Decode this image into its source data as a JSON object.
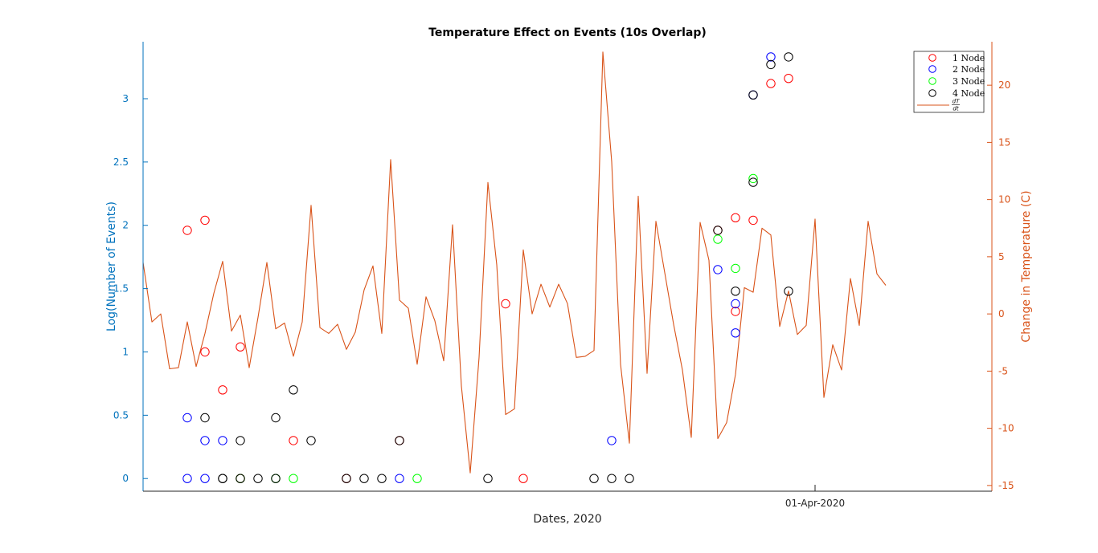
{
  "chart_data": {
    "type": "scatter",
    "title": "Temperature Effect on Events (10s Overlap)",
    "xlabel": "Dates, 2020",
    "ylabel_left": "Log(Number of Events)",
    "ylabel_right": "Change in Temperature (C)",
    "x_tick_labels": [
      "01-Apr-2020"
    ],
    "x_tick_dates": [
      "2020-04-01"
    ],
    "x_range": [
      "2020-02-23",
      "2020-04-11"
    ],
    "left_axis": {
      "ylim": [
        -0.1,
        3.45
      ],
      "ticks": [
        0,
        0.5,
        1,
        1.5,
        2,
        2.5,
        3
      ],
      "tick_labels": [
        "0",
        "0.5",
        "1",
        "1.5",
        "2",
        "2.5",
        "3"
      ],
      "color": "#0072bd"
    },
    "right_axis": {
      "ylim": [
        -15.5,
        23.8
      ],
      "ticks": [
        -15,
        -10,
        -5,
        0,
        5,
        10,
        15,
        20
      ],
      "tick_labels": [
        "-15",
        "-10",
        "-5",
        "0",
        "5",
        "10",
        "15",
        "20"
      ],
      "color": "#d95319"
    },
    "grid": false,
    "legend_position": "top-right",
    "series": [
      {
        "name": "1 Node",
        "color": "#ff0000",
        "axis": "left",
        "marker": "circle",
        "points": [
          {
            "x": "2020-02-25",
            "y": 1.96
          },
          {
            "x": "2020-02-26",
            "y": 2.04
          },
          {
            "x": "2020-02-26",
            "y": 1.0
          },
          {
            "x": "2020-02-27",
            "y": 0.7
          },
          {
            "x": "2020-02-28",
            "y": 1.04
          },
          {
            "x": "2020-02-28",
            "y": 0.0
          },
          {
            "x": "2020-03-02",
            "y": 0.3
          },
          {
            "x": "2020-03-05",
            "y": 0.0
          },
          {
            "x": "2020-03-08",
            "y": 0.3
          },
          {
            "x": "2020-03-14",
            "y": 1.38
          },
          {
            "x": "2020-03-15",
            "y": 0.0
          },
          {
            "x": "2020-03-26",
            "y": 1.96
          },
          {
            "x": "2020-03-27",
            "y": 2.06
          },
          {
            "x": "2020-03-27",
            "y": 1.32
          },
          {
            "x": "2020-03-28",
            "y": 2.04
          },
          {
            "x": "2020-03-29",
            "y": 3.12
          },
          {
            "x": "2020-03-30",
            "y": 3.16
          }
        ]
      },
      {
        "name": "2 Node",
        "color": "#0000ff",
        "axis": "left",
        "marker": "circle",
        "points": [
          {
            "x": "2020-02-25",
            "y": 0.0
          },
          {
            "x": "2020-02-25",
            "y": 0.48
          },
          {
            "x": "2020-02-26",
            "y": 0.0
          },
          {
            "x": "2020-02-26",
            "y": 0.3
          },
          {
            "x": "2020-02-27",
            "y": 0.3
          },
          {
            "x": "2020-03-08",
            "y": 0.0
          },
          {
            "x": "2020-03-20",
            "y": 0.3
          },
          {
            "x": "2020-03-26",
            "y": 1.65
          },
          {
            "x": "2020-03-27",
            "y": 1.38
          },
          {
            "x": "2020-03-27",
            "y": 1.15
          },
          {
            "x": "2020-03-28",
            "y": 3.03
          },
          {
            "x": "2020-03-29",
            "y": 3.33
          }
        ]
      },
      {
        "name": "3 Node",
        "color": "#00ff00",
        "axis": "left",
        "marker": "circle",
        "points": [
          {
            "x": "2020-02-28",
            "y": 0.0
          },
          {
            "x": "2020-03-01",
            "y": 0.0
          },
          {
            "x": "2020-03-02",
            "y": 0.0
          },
          {
            "x": "2020-03-09",
            "y": 0.0
          },
          {
            "x": "2020-03-26",
            "y": 1.89
          },
          {
            "x": "2020-03-27",
            "y": 1.66
          },
          {
            "x": "2020-03-28",
            "y": 2.37
          }
        ]
      },
      {
        "name": "4 Node",
        "color": "#000000",
        "axis": "left",
        "marker": "circle",
        "points": [
          {
            "x": "2020-02-26",
            "y": 0.48
          },
          {
            "x": "2020-02-27",
            "y": 0.0
          },
          {
            "x": "2020-02-27",
            "y": 0.0
          },
          {
            "x": "2020-02-28",
            "y": 0.3
          },
          {
            "x": "2020-02-28",
            "y": 0.0
          },
          {
            "x": "2020-02-29",
            "y": 0.0
          },
          {
            "x": "2020-03-01",
            "y": 0.48
          },
          {
            "x": "2020-03-01",
            "y": 0.0
          },
          {
            "x": "2020-03-02",
            "y": 0.7
          },
          {
            "x": "2020-03-03",
            "y": 0.3
          },
          {
            "x": "2020-03-05",
            "y": 0.0
          },
          {
            "x": "2020-03-06",
            "y": 0.0
          },
          {
            "x": "2020-03-07",
            "y": 0.0
          },
          {
            "x": "2020-03-08",
            "y": 0.3
          },
          {
            "x": "2020-03-13",
            "y": 0.0
          },
          {
            "x": "2020-03-19",
            "y": 0.0
          },
          {
            "x": "2020-03-20",
            "y": 0.0
          },
          {
            "x": "2020-03-21",
            "y": 0.0
          },
          {
            "x": "2020-03-26",
            "y": 1.96
          },
          {
            "x": "2020-03-27",
            "y": 1.48
          },
          {
            "x": "2020-03-28",
            "y": 2.34
          },
          {
            "x": "2020-03-28",
            "y": 3.03
          },
          {
            "x": "2020-03-29",
            "y": 3.27
          },
          {
            "x": "2020-03-30",
            "y": 3.33
          },
          {
            "x": "2020-03-30",
            "y": 1.48
          }
        ]
      },
      {
        "name": "dT/dt",
        "legend_label": "dT/dt",
        "color": "#d95319",
        "axis": "right",
        "type": "line",
        "x_start": "2020-02-23",
        "x_step_days": 0.5,
        "values": [
          4.5,
          -0.7,
          0,
          -4.8,
          -4.7,
          -0.7,
          -4.6,
          -1.7,
          1.8,
          4.6,
          -1.5,
          -0.1,
          -4.7,
          -0.3,
          4.5,
          -1.3,
          -0.8,
          -3.7,
          -0.7,
          9.5,
          -1.2,
          -1.7,
          -0.9,
          -3.1,
          -1.6,
          2.1,
          4.2,
          -1.7,
          13.5,
          1.2,
          0.5,
          -4.4,
          1.5,
          -0.6,
          -4.1,
          7.8,
          -6.3,
          -13.9,
          -3.8,
          11.5,
          4.3,
          -8.8,
          -8.3,
          5.6,
          0,
          2.6,
          0.6,
          2.6,
          0.9,
          -3.8,
          -3.7,
          -3.2,
          22.9,
          13.3,
          -4.4,
          -11.3,
          10.3,
          -5.2,
          8.1,
          3.6,
          -0.9,
          -4.9,
          -10.8,
          8,
          4.7,
          -10.9,
          -9.5,
          -5.3,
          2.3,
          1.9,
          7.5,
          6.9,
          -1.1,
          2,
          -1.8,
          -1,
          8.3,
          -7.3,
          -2.7,
          -4.9,
          3.1,
          -1,
          8.1,
          3.5,
          2.5
        ]
      }
    ]
  }
}
